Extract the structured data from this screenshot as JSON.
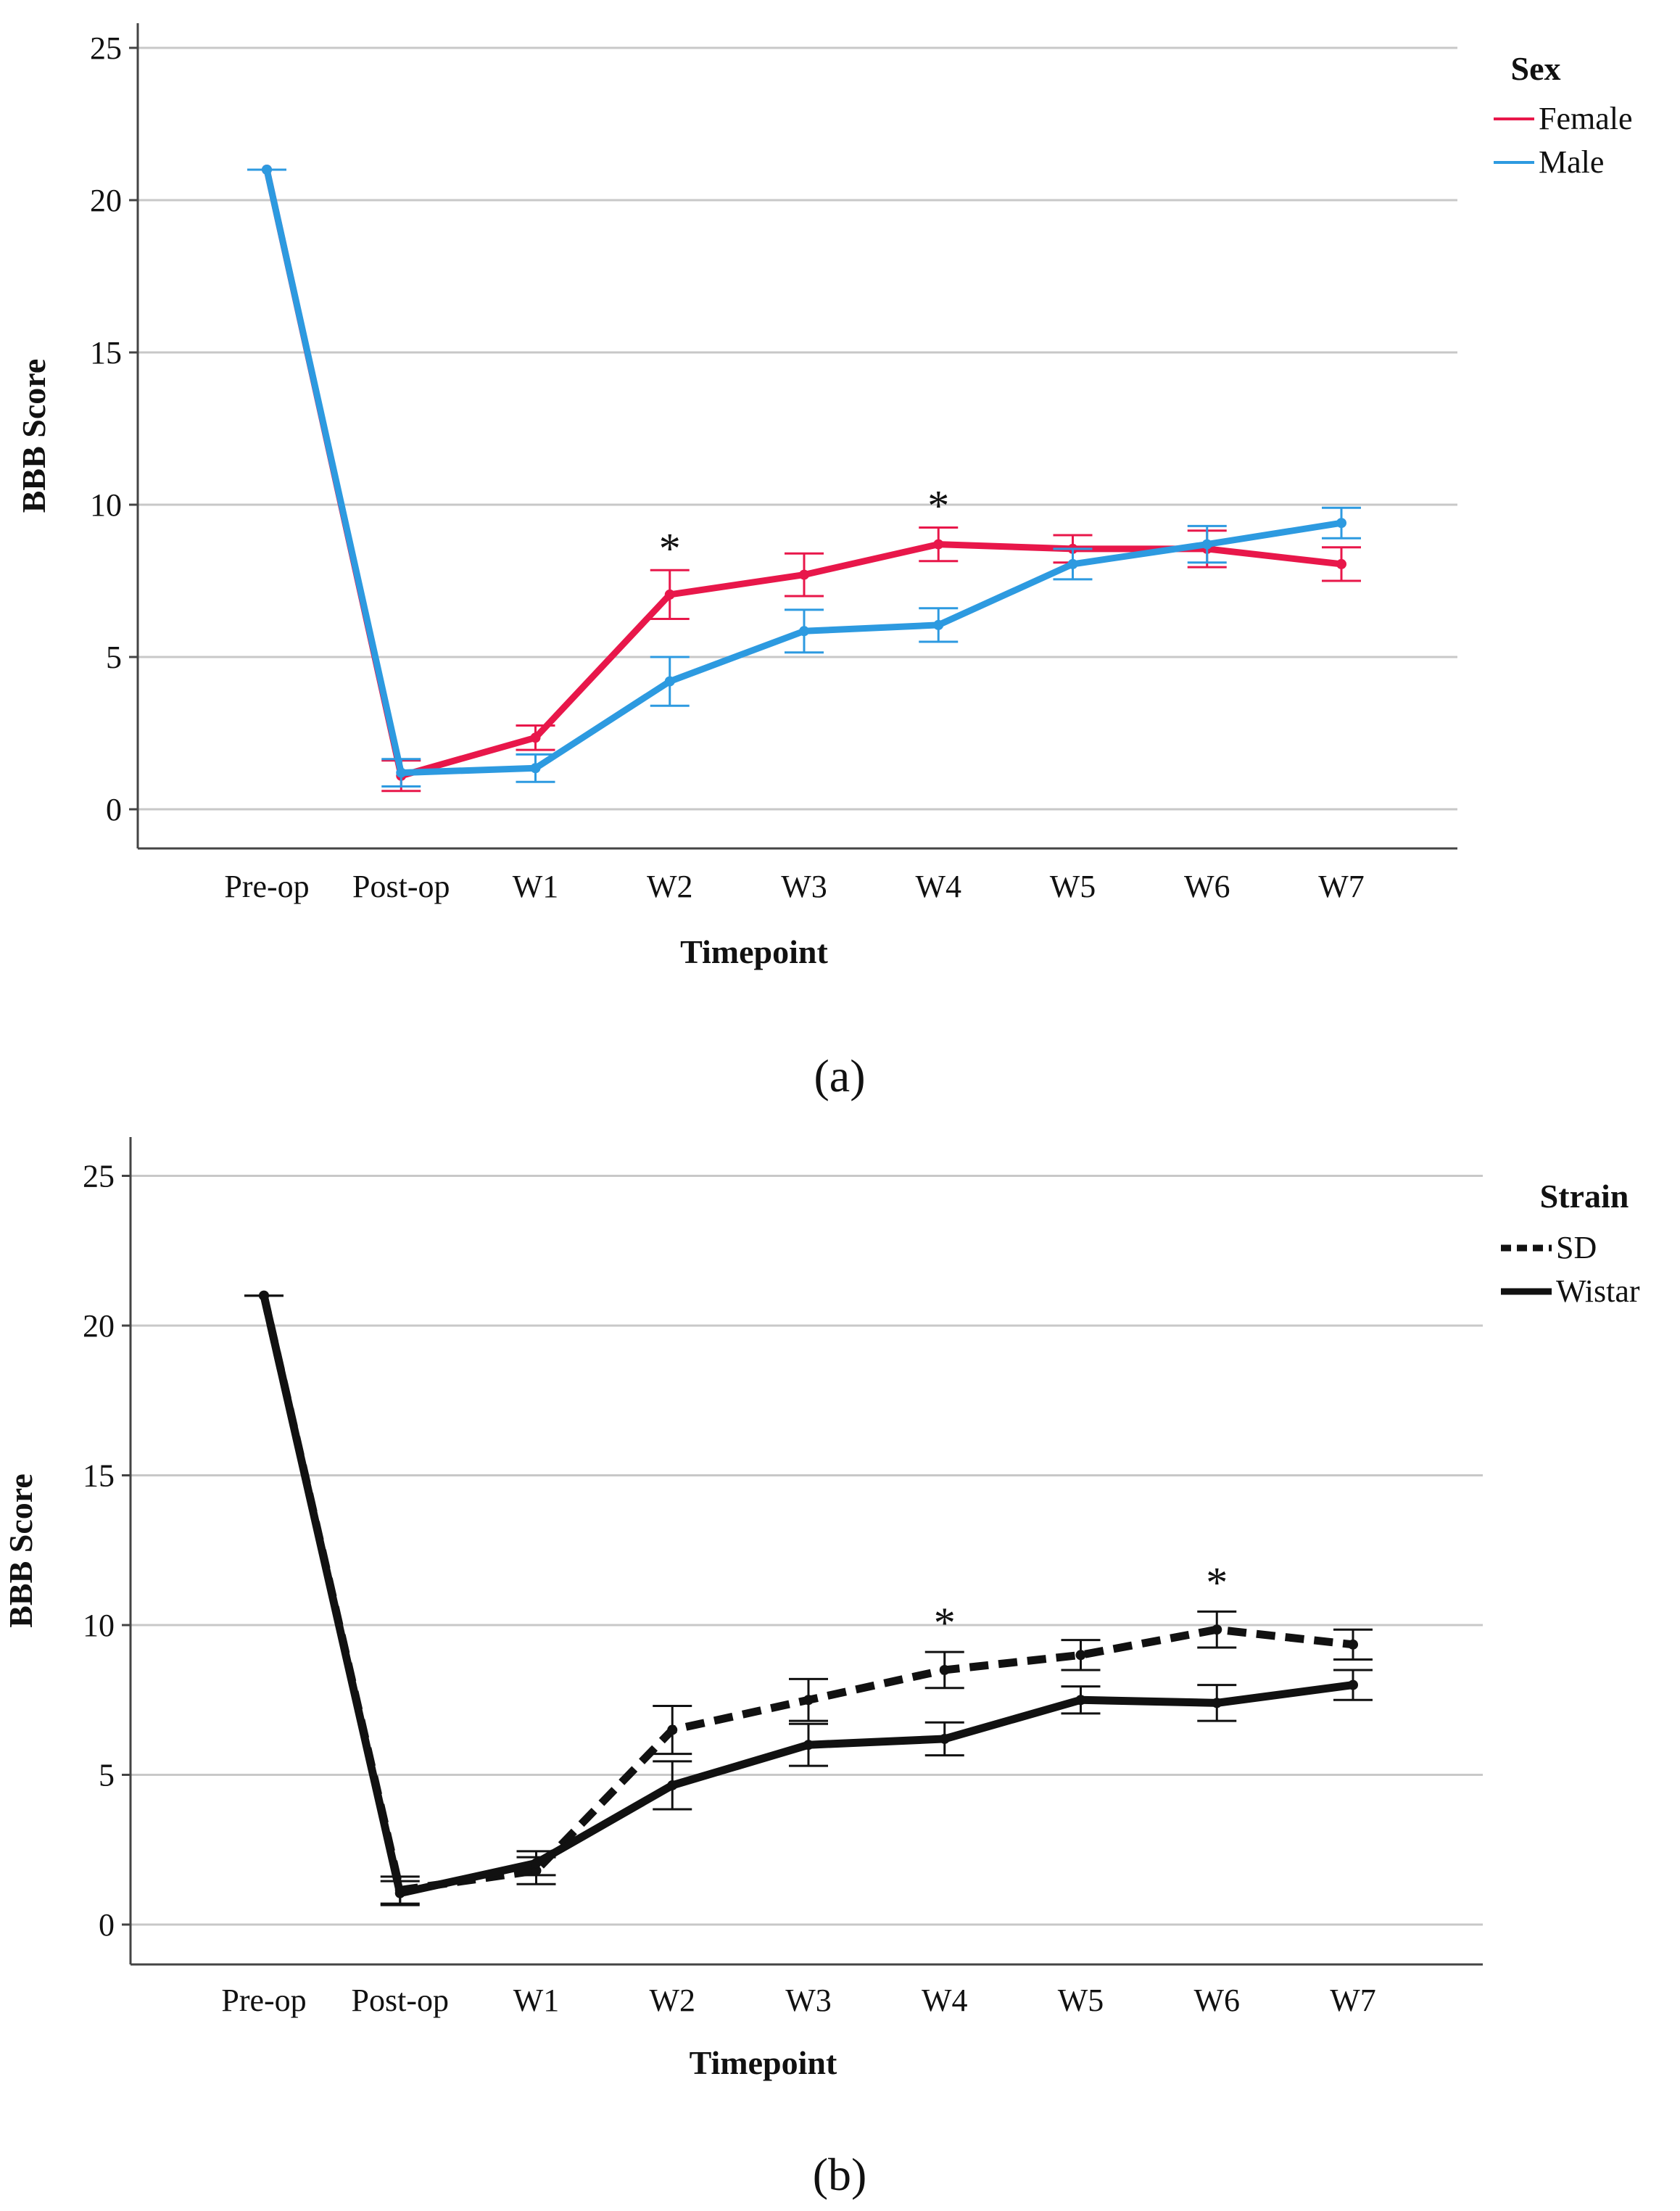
{
  "chart_data": [
    {
      "type": "line",
      "panel_label": "(a)",
      "xlabel": "Timepoint",
      "ylabel": "BBB Score",
      "categories": [
        "Pre-op",
        "Post-op",
        "W1",
        "W2",
        "W3",
        "W4",
        "W5",
        "W6",
        "W7"
      ],
      "ylim": [
        -1.3,
        26
      ],
      "yticks": [
        "0",
        "5",
        "10",
        "15",
        "20",
        "25"
      ],
      "grid": true,
      "legend": {
        "title": "Sex",
        "position": "top-right"
      },
      "series": [
        {
          "name": "Female",
          "color": "#e8174a",
          "style": "solid",
          "values": [
            21,
            1.1,
            2.35,
            7.05,
            7.7,
            8.7,
            8.55,
            8.55,
            8.05
          ],
          "errors": [
            0,
            0.5,
            0.4,
            0.8,
            0.7,
            0.55,
            0.45,
            0.6,
            0.55
          ]
        },
        {
          "name": "Male",
          "color": "#2d9ae0",
          "style": "solid",
          "values": [
            21,
            1.2,
            1.35,
            4.2,
            5.85,
            6.05,
            8.05,
            8.7,
            9.4
          ],
          "errors": [
            0,
            0.45,
            0.45,
            0.8,
            0.7,
            0.55,
            0.5,
            0.6,
            0.5
          ]
        }
      ],
      "annotations": [
        {
          "text": "*",
          "category": "W2"
        },
        {
          "text": "*",
          "category": "W4"
        }
      ]
    },
    {
      "type": "line",
      "panel_label": "(b)",
      "xlabel": "Timepoint",
      "ylabel": "BBB Score",
      "categories": [
        "Pre-op",
        "Post-op",
        "W1",
        "W2",
        "W3",
        "W4",
        "W5",
        "W6",
        "W7"
      ],
      "ylim": [
        -1.3,
        26
      ],
      "yticks": [
        "0",
        "5",
        "10",
        "15",
        "20",
        "25"
      ],
      "grid": true,
      "legend": {
        "title": "Strain",
        "position": "top-right"
      },
      "series": [
        {
          "name": "SD",
          "color": "#111111",
          "style": "dashed",
          "values": [
            21,
            1.15,
            1.8,
            6.5,
            7.5,
            8.5,
            9.0,
            9.85,
            9.35
          ],
          "errors": [
            0,
            0.45,
            0.45,
            0.8,
            0.7,
            0.6,
            0.5,
            0.6,
            0.5
          ]
        },
        {
          "name": "Wistar",
          "color": "#111111",
          "style": "solid",
          "values": [
            21,
            1.05,
            2.05,
            4.65,
            6.0,
            6.2,
            7.5,
            7.4,
            8.0
          ],
          "errors": [
            0,
            0.4,
            0.4,
            0.8,
            0.7,
            0.55,
            0.45,
            0.6,
            0.5
          ]
        }
      ],
      "annotations": [
        {
          "text": "*",
          "category": "W4"
        },
        {
          "text": "*",
          "category": "W6"
        }
      ]
    }
  ]
}
